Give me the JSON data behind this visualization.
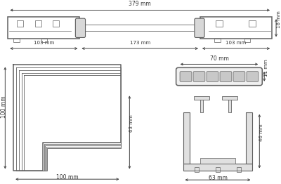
{
  "bg_color": "#ffffff",
  "line_color": "#606060",
  "text_color": "#333333",
  "fig_width": 4.0,
  "fig_height": 2.62,
  "top_bar": {
    "label_total": "379 mm",
    "label_left": "103 mm",
    "label_mid": "173 mm",
    "label_right": "103 mm",
    "label_h": "18 mm"
  },
  "corner": {
    "label_w": "100 mm",
    "label_h": "100 mm",
    "label_inner_h": "63 mm"
  },
  "front": {
    "label_w": "70 mm",
    "label_h": "11 mm",
    "n_contacts": 6
  },
  "side": {
    "label_w": "63 mm",
    "label_h": "46 mm"
  }
}
